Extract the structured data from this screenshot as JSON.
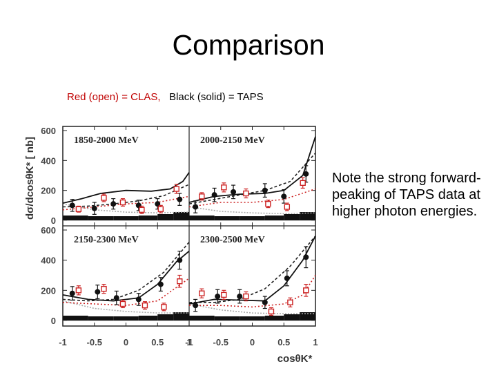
{
  "slide": {
    "title": "Comparison",
    "legend_red": "Red (open) = CLAS,",
    "legend_black": "Black (solid) = TAPS",
    "note": "Note the strong forward-peaking of TAPS data at higher photon energies."
  },
  "colors": {
    "clas": "#cc2222",
    "taps": "#111111"
  },
  "chart_data": {
    "type": "scatter",
    "ylabel": "dσ/dcosθK* [ nb]",
    "xlabel": "cosθK*",
    "xlim": [
      -1,
      1
    ],
    "ylim": [
      0,
      600
    ],
    "xticks": [
      -1,
      -0.5,
      0,
      0.5,
      1
    ],
    "x_tick_labels": [
      "-1",
      "-0.5",
      "0",
      "0.5",
      "1",
      "-1",
      "-0.5",
      "0",
      "0.5",
      "1"
    ],
    "yticks": [
      0,
      200,
      400,
      600
    ],
    "panels": [
      {
        "label": "1850-2000 MeV",
        "series": [
          {
            "name": "TAPS",
            "marker": "filled-circle",
            "points": [
              [
                -0.85,
                100,
                40
              ],
              [
                -0.5,
                80,
                40
              ],
              [
                -0.2,
                110,
                35
              ],
              [
                0.2,
                100,
                35
              ],
              [
                0.5,
                110,
                35
              ],
              [
                0.85,
                140,
                40
              ]
            ]
          },
          {
            "name": "CLAS",
            "marker": "open-square",
            "points": [
              [
                -0.75,
                75,
                20
              ],
              [
                -0.35,
                150,
                25
              ],
              [
                -0.05,
                120,
                25
              ],
              [
                0.25,
                70,
                25
              ],
              [
                0.55,
                75,
                25
              ],
              [
                0.8,
                210,
                30
              ]
            ]
          }
        ],
        "curves": {
          "solid": [
            [
              -1,
              115
            ],
            [
              -0.7,
              145
            ],
            [
              -0.4,
              180
            ],
            [
              0,
              200
            ],
            [
              0.4,
              195
            ],
            [
              0.7,
              210
            ],
            [
              0.9,
              260
            ],
            [
              1,
              320
            ]
          ],
          "dashed": [
            [
              -1,
              90
            ],
            [
              -0.6,
              95
            ],
            [
              -0.2,
              110
            ],
            [
              0.2,
              130
            ],
            [
              0.6,
              165
            ],
            [
              1,
              240
            ]
          ],
          "dotted_red": [
            [
              -1,
              70
            ],
            [
              -0.5,
              90
            ],
            [
              0,
              110
            ],
            [
              0.5,
              120
            ],
            [
              1,
              160
            ]
          ],
          "gray": [
            [
              -1,
              110
            ],
            [
              -0.5,
              70
            ],
            [
              0,
              55
            ],
            [
              0.5,
              50
            ],
            [
              1,
              55
            ]
          ]
        }
      },
      {
        "label": "2000-2150 MeV",
        "series": [
          {
            "name": "TAPS",
            "marker": "filled-circle",
            "points": [
              [
                -0.9,
                90,
                40
              ],
              [
                -0.6,
                170,
                45
              ],
              [
                -0.3,
                190,
                45
              ],
              [
                0.2,
                200,
                45
              ],
              [
                0.5,
                160,
                45
              ],
              [
                0.85,
                310,
                55
              ]
            ]
          },
          {
            "name": "CLAS",
            "marker": "open-square",
            "points": [
              [
                -0.8,
                160,
                25
              ],
              [
                -0.45,
                220,
                30
              ],
              [
                -0.1,
                180,
                30
              ],
              [
                0.25,
                110,
                25
              ],
              [
                0.55,
                90,
                25
              ],
              [
                0.8,
                250,
                35
              ]
            ]
          }
        ],
        "curves": {
          "solid": [
            [
              -1,
              120
            ],
            [
              -0.6,
              160
            ],
            [
              -0.2,
              175
            ],
            [
              0.2,
              180
            ],
            [
              0.5,
              200
            ],
            [
              0.8,
              300
            ],
            [
              1,
              560
            ]
          ],
          "dashed": [
            [
              -1,
              110
            ],
            [
              -0.6,
              140
            ],
            [
              -0.2,
              170
            ],
            [
              0.2,
              200
            ],
            [
              0.6,
              260
            ],
            [
              1,
              450
            ]
          ],
          "dotted_red": [
            [
              -1,
              90
            ],
            [
              -0.5,
              120
            ],
            [
              0,
              120
            ],
            [
              0.5,
              140
            ],
            [
              1,
              210
            ]
          ],
          "gray": [
            [
              -1,
              90
            ],
            [
              -0.5,
              60
            ],
            [
              0,
              50
            ],
            [
              0.5,
              45
            ],
            [
              1,
              50
            ]
          ]
        }
      },
      {
        "label": "2150-2300 MeV",
        "series": [
          {
            "name": "TAPS",
            "marker": "filled-circle",
            "points": [
              [
                -0.85,
                180,
                45
              ],
              [
                -0.45,
                190,
                45
              ],
              [
                -0.15,
                150,
                45
              ],
              [
                0.2,
                140,
                40
              ],
              [
                0.55,
                240,
                45
              ],
              [
                0.85,
                400,
                60
              ]
            ]
          },
          {
            "name": "CLAS",
            "marker": "open-square",
            "points": [
              [
                -0.75,
                200,
                30
              ],
              [
                -0.35,
                210,
                30
              ],
              [
                -0.05,
                110,
                25
              ],
              [
                0.3,
                100,
                25
              ],
              [
                0.6,
                90,
                25
              ],
              [
                0.85,
                260,
                40
              ]
            ]
          }
        ],
        "curves": {
          "solid": [
            [
              -1,
              170
            ],
            [
              -0.6,
              140
            ],
            [
              -0.2,
              130
            ],
            [
              0.2,
              150
            ],
            [
              0.5,
              240
            ],
            [
              0.8,
              390
            ],
            [
              1,
              460
            ]
          ],
          "dashed": [
            [
              -1,
              140
            ],
            [
              -0.6,
              130
            ],
            [
              -0.2,
              140
            ],
            [
              0.2,
              200
            ],
            [
              0.6,
              320
            ],
            [
              1,
              520
            ]
          ],
          "dotted_red": [
            [
              -1,
              120
            ],
            [
              -0.5,
              110
            ],
            [
              0,
              100
            ],
            [
              0.5,
              130
            ],
            [
              0.8,
              220
            ],
            [
              1,
              280
            ]
          ],
          "gray": [
            [
              -1,
              130
            ],
            [
              -0.5,
              80
            ],
            [
              0,
              60
            ],
            [
              0.5,
              50
            ],
            [
              1,
              50
            ]
          ]
        }
      },
      {
        "label": "2300-2500 MeV",
        "series": [
          {
            "name": "TAPS",
            "marker": "filled-circle",
            "points": [
              [
                -0.9,
                100,
                40
              ],
              [
                -0.55,
                160,
                45
              ],
              [
                -0.2,
                160,
                45
              ],
              [
                0.2,
                120,
                40
              ],
              [
                0.55,
                280,
                50
              ],
              [
                0.85,
                420,
                70
              ]
            ]
          },
          {
            "name": "CLAS",
            "marker": "open-square",
            "points": [
              [
                -0.8,
                180,
                30
              ],
              [
                -0.45,
                170,
                30
              ],
              [
                -0.1,
                160,
                30
              ],
              [
                0.3,
                60,
                25
              ],
              [
                0.6,
                120,
                30
              ],
              [
                0.85,
                200,
                40
              ]
            ]
          }
        ],
        "curves": {
          "solid": [
            [
              -1,
              110
            ],
            [
              -0.6,
              140
            ],
            [
              -0.2,
              135
            ],
            [
              0.2,
              130
            ],
            [
              0.5,
              230
            ],
            [
              0.8,
              400
            ],
            [
              1,
              560
            ]
          ],
          "dashed": [
            [
              -1,
              120
            ],
            [
              -0.6,
              120
            ],
            [
              -0.2,
              140
            ],
            [
              0.2,
              210
            ],
            [
              0.6,
              360
            ],
            [
              1,
              560
            ]
          ],
          "dotted_red": [
            [
              -1,
              100
            ],
            [
              -0.5,
              100
            ],
            [
              0,
              90
            ],
            [
              0.5,
              110
            ],
            [
              0.8,
              170
            ],
            [
              1,
              300
            ]
          ],
          "gray": [
            [
              -1,
              110
            ],
            [
              -0.5,
              70
            ],
            [
              0,
              50
            ],
            [
              0.5,
              45
            ],
            [
              1,
              45
            ]
          ]
        }
      }
    ]
  }
}
